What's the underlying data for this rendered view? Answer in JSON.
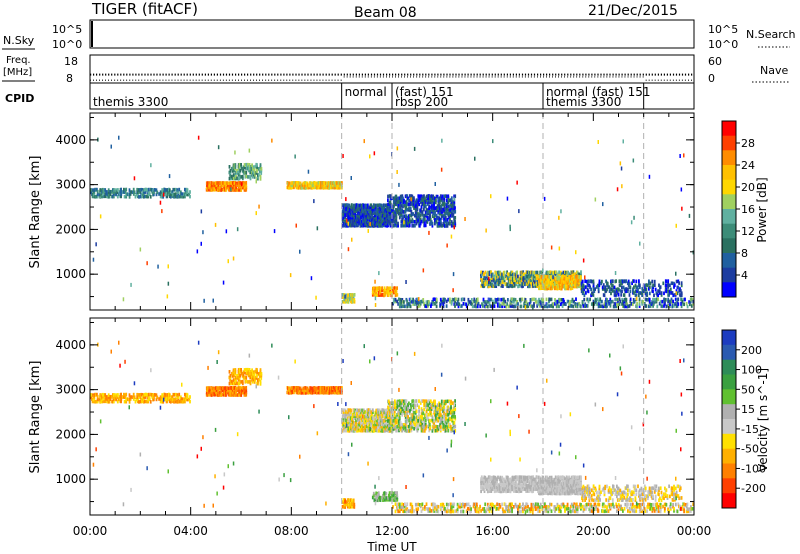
{
  "header": {
    "radar": "TIGER (fitACF)",
    "beam": "Beam 08",
    "date": "21/Dec/2015"
  },
  "panels": {
    "nsky": {
      "label": "N.Sky",
      "ticks": [
        "10^5",
        "10^0"
      ],
      "right_ticks": [
        "10^5",
        "10^0"
      ],
      "right_label": "N.Search"
    },
    "freq": {
      "label": "Freq.",
      "unit": "[MHz]",
      "ticks": [
        "18",
        "8"
      ],
      "right_ticks": [
        "60",
        "0"
      ],
      "right_label": "Nave",
      "freq_value_mhz": 11,
      "nave_value": 6
    },
    "cpid": {
      "label": "CPID",
      "entries": [
        {
          "start": 0.0,
          "row": 1,
          "text": "themis 3300"
        },
        {
          "start": 10.0,
          "row": 0,
          "text": "normal"
        },
        {
          "start": 12.0,
          "row": 0,
          "text": "(fast) 151"
        },
        {
          "start": 12.0,
          "row": 1,
          "text": "rbsp 200"
        },
        {
          "start": 18.0,
          "row": 0,
          "text": "normal (fast) 151"
        },
        {
          "start": 18.0,
          "row": 1,
          "text": "themis 3300"
        }
      ],
      "boundaries": [
        10.0,
        12.0,
        18.0,
        22.0
      ]
    }
  },
  "chart_data": [
    {
      "type": "heatmap",
      "title": "Power",
      "xlabel": "Time UT",
      "ylabel": "Slant Range [km]",
      "xlim": [
        0,
        24
      ],
      "ylim": [
        200,
        4600
      ],
      "x_ticks": [
        0,
        4,
        8,
        12,
        16,
        20,
        24
      ],
      "x_tick_labels": [
        "00:00",
        "04:00",
        "08:00",
        "12:00",
        "16:00",
        "20:00",
        "00:00"
      ],
      "y_ticks": [
        1000,
        2000,
        3000,
        4000
      ],
      "y_tick_labels": [
        "1000",
        "2000",
        "3000",
        "4000"
      ],
      "colorbar": {
        "label": "Power [dB]",
        "ticks": [
          "28",
          "24",
          "20",
          "16",
          "12",
          "8",
          "4"
        ],
        "colors": [
          "#ff0000",
          "#ff4000",
          "#ff8c00",
          "#ffc000",
          "#ffd700",
          "#a0d060",
          "#60b0a0",
          "#3c8c78",
          "#2a7060",
          "#2060a0",
          "#1c3ca0",
          "#0000ff"
        ]
      },
      "regions": [
        {
          "t0": 0.0,
          "t1": 4.0,
          "r0": 2700,
          "r1": 2900,
          "c": [
            6,
            9
          ],
          "d": 0.55
        },
        {
          "t0": 4.6,
          "t1": 6.2,
          "r0": 2850,
          "r1": 3050,
          "c": [
            1,
            3
          ],
          "d": 0.8
        },
        {
          "t0": 5.5,
          "t1": 6.8,
          "r0": 3100,
          "r1": 3450,
          "c": [
            5,
            8
          ],
          "d": 0.4
        },
        {
          "t0": 7.8,
          "t1": 10.0,
          "r0": 2900,
          "r1": 3050,
          "c": [
            2,
            5
          ],
          "d": 0.85
        },
        {
          "t0": 10.0,
          "t1": 12.0,
          "r0": 2050,
          "r1": 2550,
          "c": [
            8,
            11
          ],
          "d": 0.8
        },
        {
          "t0": 11.8,
          "t1": 14.5,
          "r0": 2050,
          "r1": 2750,
          "c": [
            8,
            11
          ],
          "d": 0.45
        },
        {
          "t0": 10.0,
          "t1": 10.5,
          "r0": 350,
          "r1": 550,
          "c": [
            3,
            6
          ],
          "d": 0.7
        },
        {
          "t0": 11.2,
          "t1": 12.2,
          "r0": 500,
          "r1": 700,
          "c": [
            1,
            4
          ],
          "d": 0.6
        },
        {
          "t0": 12.0,
          "t1": 24.0,
          "r0": 250,
          "r1": 450,
          "c": [
            5,
            11
          ],
          "d": 0.35
        },
        {
          "t0": 15.5,
          "t1": 19.5,
          "r0": 700,
          "r1": 1050,
          "c": [
            3,
            10
          ],
          "d": 0.55
        },
        {
          "t0": 17.8,
          "t1": 19.5,
          "r0": 650,
          "r1": 950,
          "c": [
            2,
            5
          ],
          "d": 0.6
        },
        {
          "t0": 19.5,
          "t1": 23.5,
          "r0": 500,
          "r1": 850,
          "c": [
            8,
            11
          ],
          "d": 0.25
        }
      ]
    },
    {
      "type": "heatmap",
      "title": "Velocity",
      "xlabel": "Time UT",
      "ylabel": "Slant Range [km]",
      "xlim": [
        0,
        24
      ],
      "ylim": [
        200,
        4600
      ],
      "x_ticks": [
        0,
        4,
        8,
        12,
        16,
        20,
        24
      ],
      "x_tick_labels": [
        "00:00",
        "04:00",
        "08:00",
        "12:00",
        "16:00",
        "20:00",
        "00:00"
      ],
      "y_ticks": [
        1000,
        2000,
        3000,
        4000
      ],
      "y_tick_labels": [
        "1000",
        "2000",
        "3000",
        "4000"
      ],
      "colorbar": {
        "label": "Velocity [m s^-1]",
        "ticks": [
          "200",
          "100",
          "50",
          "15",
          "-15",
          "-50",
          "-100",
          "-200"
        ],
        "colors": [
          "#1c3cc0",
          "#2a5ab0",
          "#2e8c58",
          "#3aa040",
          "#60c030",
          "#b0b0b0",
          "#c8c8c8",
          "#ffe000",
          "#ffb000",
          "#ff8000",
          "#ff4000",
          "#ff0000"
        ]
      },
      "regions": [
        {
          "t0": 0.0,
          "t1": 4.0,
          "r0": 2700,
          "r1": 2900,
          "c": [
            7,
            9
          ],
          "d": 0.55
        },
        {
          "t0": 4.6,
          "t1": 6.2,
          "r0": 2850,
          "r1": 3050,
          "c": [
            8,
            10
          ],
          "d": 0.8
        },
        {
          "t0": 5.5,
          "t1": 6.8,
          "r0": 3100,
          "r1": 3450,
          "c": [
            7,
            9
          ],
          "d": 0.4
        },
        {
          "t0": 7.8,
          "t1": 10.0,
          "r0": 2900,
          "r1": 3050,
          "c": [
            8,
            10
          ],
          "d": 0.85
        },
        {
          "t0": 10.0,
          "t1": 12.0,
          "r0": 2050,
          "r1": 2550,
          "c": [
            4,
            8
          ],
          "d": 0.75
        },
        {
          "t0": 11.8,
          "t1": 14.5,
          "r0": 2050,
          "r1": 2750,
          "c": [
            3,
            8
          ],
          "d": 0.4
        },
        {
          "t0": 10.0,
          "t1": 10.5,
          "r0": 350,
          "r1": 550,
          "c": [
            7,
            9
          ],
          "d": 0.7
        },
        {
          "t0": 11.2,
          "t1": 12.2,
          "r0": 500,
          "r1": 700,
          "c": [
            3,
            5
          ],
          "d": 0.6
        },
        {
          "t0": 12.0,
          "t1": 24.0,
          "r0": 250,
          "r1": 450,
          "c": [
            4,
            9
          ],
          "d": 0.35
        },
        {
          "t0": 15.5,
          "t1": 19.5,
          "r0": 700,
          "r1": 1050,
          "c": [
            5,
            6
          ],
          "d": 0.6
        },
        {
          "t0": 17.8,
          "t1": 19.5,
          "r0": 650,
          "r1": 950,
          "c": [
            5,
            6
          ],
          "d": 0.7
        },
        {
          "t0": 19.5,
          "t1": 23.5,
          "r0": 500,
          "r1": 850,
          "c": [
            5,
            8
          ],
          "d": 0.25
        }
      ]
    }
  ],
  "boundaries_ut": [
    10.0,
    12.0,
    18.0,
    22.0
  ]
}
